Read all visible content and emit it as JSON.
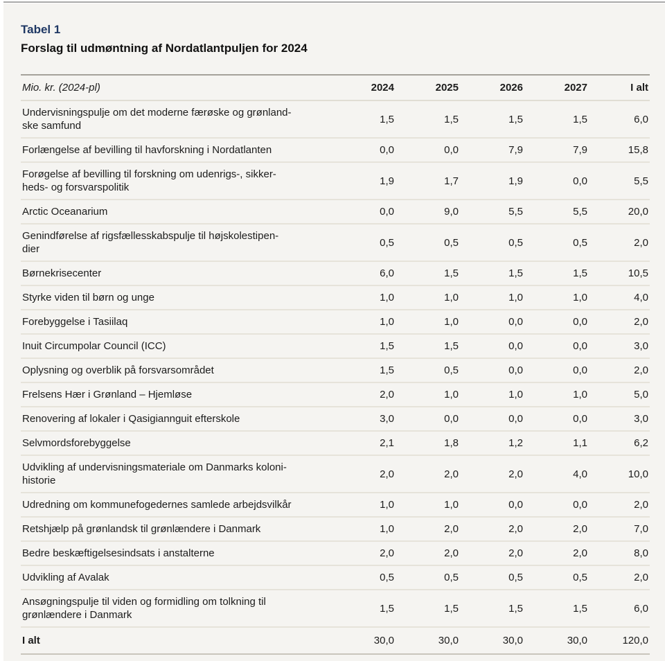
{
  "header": {
    "table_number": "Tabel 1",
    "title": "Forslag til udmøntning af Nordatlantpuljen for 2024"
  },
  "colors": {
    "accent_blue": "#1f3864",
    "sheet_background": "#f5f4f1",
    "table_top_border": "#a5a19a",
    "row_separator": "#e6e3da",
    "bottom_border": "#c9c5bc"
  },
  "table": {
    "unit_header": "Mio. kr. (2024-pl)",
    "columns": [
      "2024",
      "2025",
      "2026",
      "2027",
      "I alt"
    ],
    "rows": [
      {
        "label": "Undervisningspulje om det moderne færøske og grønland-\nske samfund",
        "values": [
          "1,5",
          "1,5",
          "1,5",
          "1,5",
          "6,0"
        ]
      },
      {
        "label": "Forlængelse af bevilling til havforskning i Nordatlanten",
        "values": [
          "0,0",
          "0,0",
          "7,9",
          "7,9",
          "15,8"
        ]
      },
      {
        "label": "Forøgelse af bevilling til forskning om udenrigs-, sikker-\nheds- og forsvarspolitik",
        "values": [
          "1,9",
          "1,7",
          "1,9",
          "0,0",
          "5,5"
        ]
      },
      {
        "label": "Arctic Oceanarium",
        "values": [
          "0,0",
          "9,0",
          "5,5",
          "5,5",
          "20,0"
        ]
      },
      {
        "label": "Genindførelse af rigsfællesskabspulje til højskolestipen-\ndier",
        "values": [
          "0,5",
          "0,5",
          "0,5",
          "0,5",
          "2,0"
        ]
      },
      {
        "label": "Børnekrisecenter",
        "values": [
          "6,0",
          "1,5",
          "1,5",
          "1,5",
          "10,5"
        ]
      },
      {
        "label": "Styrke viden til børn og unge",
        "values": [
          "1,0",
          "1,0",
          "1,0",
          "1,0",
          "4,0"
        ]
      },
      {
        "label": "Forebyggelse i Tasiilaq",
        "values": [
          "1,0",
          "1,0",
          "0,0",
          "0,0",
          "2,0"
        ]
      },
      {
        "label": "Inuit Circumpolar Council (ICC)",
        "values": [
          "1,5",
          "1,5",
          "0,0",
          "0,0",
          "3,0"
        ]
      },
      {
        "label": "Oplysning og overblik på forsvarsområdet",
        "values": [
          "1,5",
          "0,5",
          "0,0",
          "0,0",
          "2,0"
        ]
      },
      {
        "label": "Frelsens Hær i Grønland – Hjemløse",
        "values": [
          "2,0",
          "1,0",
          "1,0",
          "1,0",
          "5,0"
        ]
      },
      {
        "label": "Renovering af lokaler i Qasigiannguit efterskole",
        "values": [
          "3,0",
          "0,0",
          "0,0",
          "0,0",
          "3,0"
        ]
      },
      {
        "label": "Selvmordsforebyggelse",
        "values": [
          "2,1",
          "1,8",
          "1,2",
          "1,1",
          "6,2"
        ]
      },
      {
        "label": "Udvikling af undervisningsmateriale om Danmarks koloni-\nhistorie",
        "values": [
          "2,0",
          "2,0",
          "2,0",
          "4,0",
          "10,0"
        ]
      },
      {
        "label": "Udredning om kommunefogedernes samlede arbejdsvilkår",
        "values": [
          "1,0",
          "1,0",
          "0,0",
          "0,0",
          "2,0"
        ]
      },
      {
        "label": "Retshjælp på grønlandsk til grønlændere i Danmark",
        "values": [
          "1,0",
          "2,0",
          "2,0",
          "2,0",
          "7,0"
        ]
      },
      {
        "label": "Bedre beskæftigelsesindsats i anstalterne",
        "values": [
          "2,0",
          "2,0",
          "2,0",
          "2,0",
          "8,0"
        ]
      },
      {
        "label": "Udvikling af Avalak",
        "values": [
          "0,5",
          "0,5",
          "0,5",
          "0,5",
          "2,0"
        ]
      },
      {
        "label": "Ansøgningspulje til viden og formidling om tolkning til\ngrønlændere i Danmark",
        "values": [
          "1,5",
          "1,5",
          "1,5",
          "1,5",
          "6,0"
        ]
      }
    ],
    "total": {
      "label": "I alt",
      "values": [
        "30,0",
        "30,0",
        "30,0",
        "30,0",
        "120,0"
      ]
    }
  }
}
